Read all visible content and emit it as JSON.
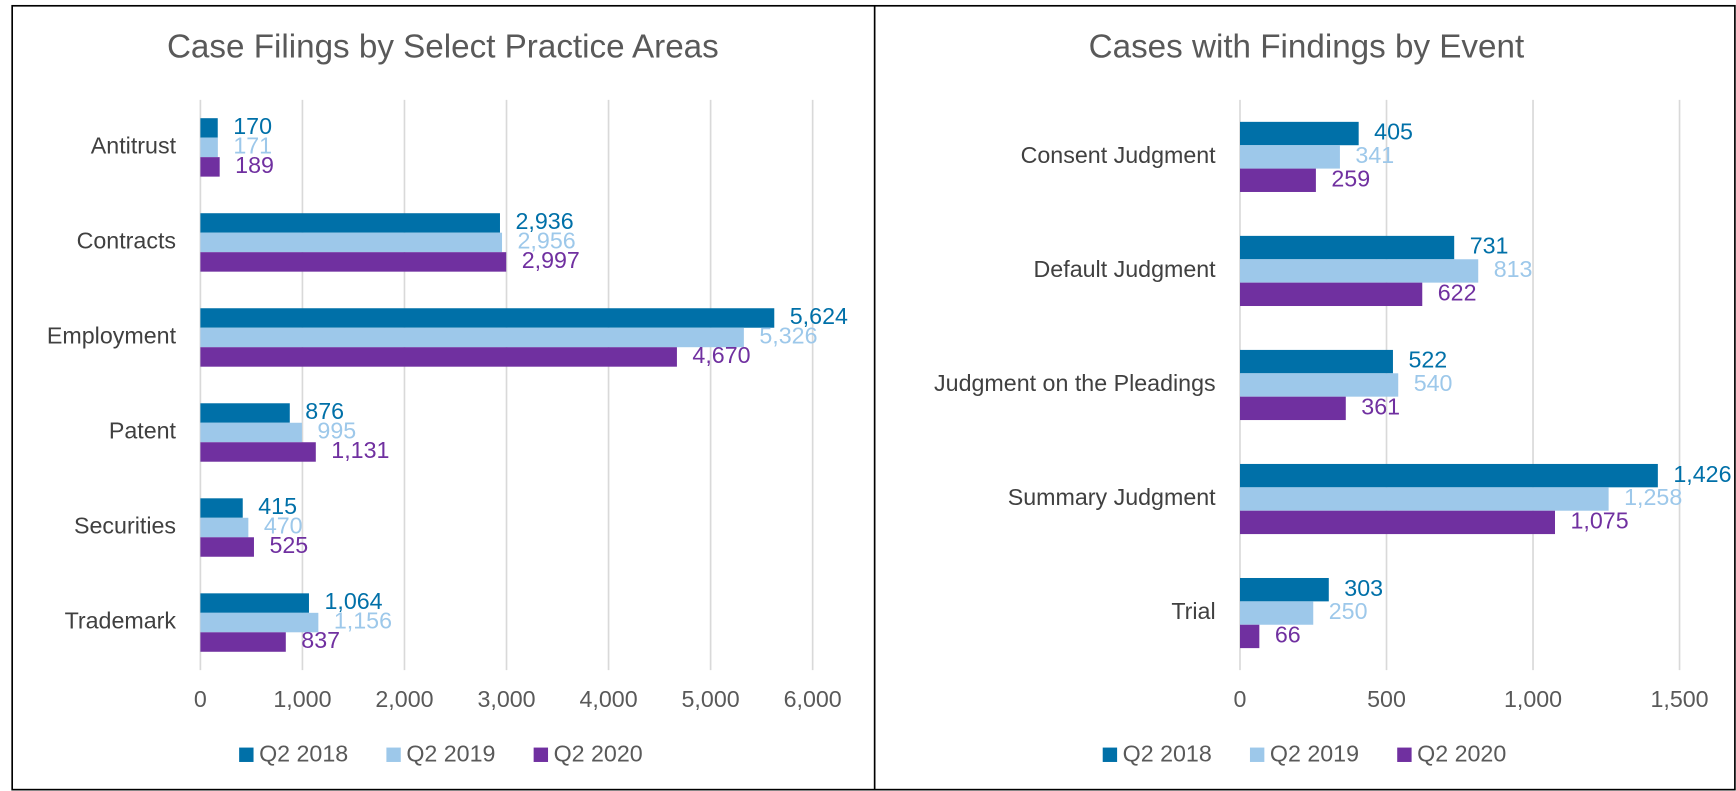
{
  "chart_data": [
    {
      "type": "bar",
      "orientation": "horizontal",
      "title": "Case Filings by Select Practice Areas",
      "categories": [
        "Antitrust",
        "Contracts",
        "Employment",
        "Patent",
        "Securities",
        "Trademark"
      ],
      "series": [
        {
          "name": "Q2 2018",
          "color": "#0070a8",
          "values": [
            170,
            2936,
            5624,
            876,
            415,
            1064
          ],
          "value_labels": [
            "170",
            "2,936",
            "5,624",
            "876",
            "415",
            "1,064"
          ]
        },
        {
          "name": "Q2 2019",
          "color": "#9dc8ea",
          "values": [
            171,
            2956,
            5326,
            995,
            470,
            1156
          ],
          "value_labels": [
            "171",
            "2,956",
            "5,326",
            "995",
            "470",
            "1,156"
          ]
        },
        {
          "name": "Q2 2020",
          "color": "#7030a0",
          "values": [
            189,
            2997,
            4670,
            1131,
            525,
            837
          ],
          "value_labels": [
            "189",
            "2,997",
            "4,670",
            "1,131",
            "525",
            "837"
          ]
        }
      ],
      "xlim": [
        0,
        6000
      ],
      "xticks": [
        0,
        {
          "value": 1000,
          "label": "1,000"
        },
        {
          "value": 2000,
          "label": "2,000"
        },
        {
          "value": 3000,
          "label": "3,000"
        },
        {
          "value": 4000,
          "label": "4,000"
        },
        {
          "value": 5000,
          "label": "5,000"
        },
        {
          "value": 6000,
          "label": "6,000"
        }
      ],
      "grid": true,
      "legend": "bottom"
    },
    {
      "type": "bar",
      "orientation": "horizontal",
      "title": "Cases with Findings by Event",
      "categories": [
        "Consent Judgment",
        "Default Judgment",
        "Judgment on the Pleadings",
        "Summary Judgment",
        "Trial"
      ],
      "series": [
        {
          "name": "Q2 2018",
          "color": "#0070a8",
          "values": [
            405,
            731,
            522,
            1426,
            303
          ],
          "value_labels": [
            "405",
            "731",
            "522",
            "1,426",
            "303"
          ]
        },
        {
          "name": "Q2 2019",
          "color": "#9dc8ea",
          "values": [
            341,
            813,
            540,
            1258,
            250
          ],
          "value_labels": [
            "341",
            "813",
            "540",
            "1,258",
            "250"
          ]
        },
        {
          "name": "Q2 2020",
          "color": "#7030a0",
          "values": [
            259,
            622,
            361,
            1075,
            66
          ],
          "value_labels": [
            "259",
            "622",
            "361",
            "1,075",
            "66"
          ]
        }
      ],
      "xlim": [
        0,
        1500
      ],
      "xticks": [
        0,
        500,
        {
          "value": 1000,
          "label": "1,000"
        },
        {
          "value": 1500,
          "label": "1,500"
        }
      ],
      "grid": true,
      "legend": "bottom"
    }
  ]
}
